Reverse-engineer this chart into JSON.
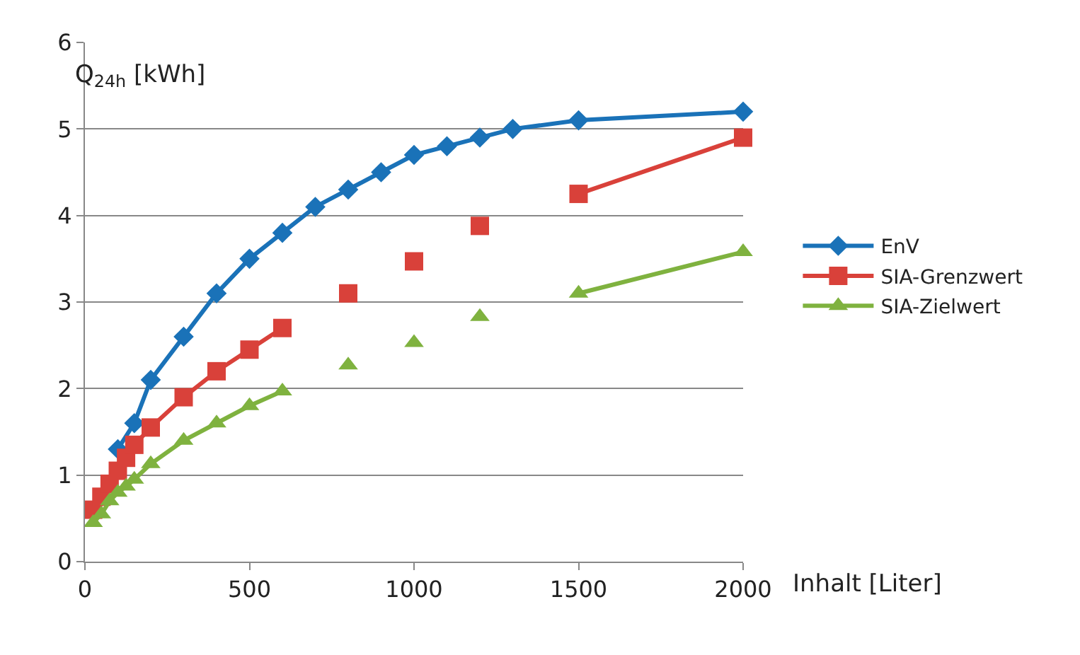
{
  "chart_data": {
    "type": "line",
    "ylabel": "Q$_{24h}$ [kWh]",
    "xlabel": "Inhalt [Liter]",
    "xlim": [
      0,
      2000
    ],
    "xticks": [
      0,
      500,
      1000,
      1500,
      2000
    ],
    "ylim": [
      0,
      6
    ],
    "yticks": [
      0,
      1,
      2,
      3,
      4,
      5,
      6
    ],
    "grid": "y",
    "legend": "right",
    "series": [
      {
        "name": "EnV",
        "color": "#1a72b8",
        "marker": "diamond",
        "x": [
          100,
          150,
          200,
          300,
          400,
          500,
          600,
          700,
          800,
          900,
          1000,
          1100,
          1200,
          1300,
          1500,
          2000
        ],
        "values": [
          1.3,
          1.6,
          2.1,
          2.6,
          3.1,
          3.5,
          3.8,
          4.1,
          4.3,
          4.5,
          4.7,
          4.8,
          4.9,
          5.0,
          5.1,
          5.2
        ]
      },
      {
        "name": "SIA-Grenzwert",
        "color": "#d9413a",
        "marker": "square",
        "x": [
          25,
          50,
          75,
          100,
          125,
          150,
          200,
          300,
          400,
          500,
          600,
          null,
          800,
          null,
          1000,
          null,
          1200,
          null,
          1500,
          2000
        ],
        "values": [
          0.6,
          0.75,
          0.9,
          1.05,
          1.2,
          1.35,
          1.55,
          1.9,
          2.2,
          2.45,
          2.7,
          null,
          3.1,
          null,
          3.47,
          null,
          3.88,
          null,
          4.25,
          4.9
        ]
      },
      {
        "name": "SIA-Zielwert",
        "color": "#7fb23f",
        "marker": "triangle",
        "x": [
          25,
          50,
          75,
          100,
          125,
          150,
          200,
          300,
          400,
          500,
          600,
          null,
          800,
          null,
          1000,
          null,
          1200,
          null,
          1500,
          2000
        ],
        "values": [
          0.45,
          0.55,
          0.7,
          0.8,
          0.87,
          0.95,
          1.13,
          1.4,
          1.6,
          1.8,
          1.97,
          null,
          2.27,
          null,
          2.53,
          null,
          2.83,
          null,
          3.1,
          3.58
        ]
      }
    ]
  }
}
